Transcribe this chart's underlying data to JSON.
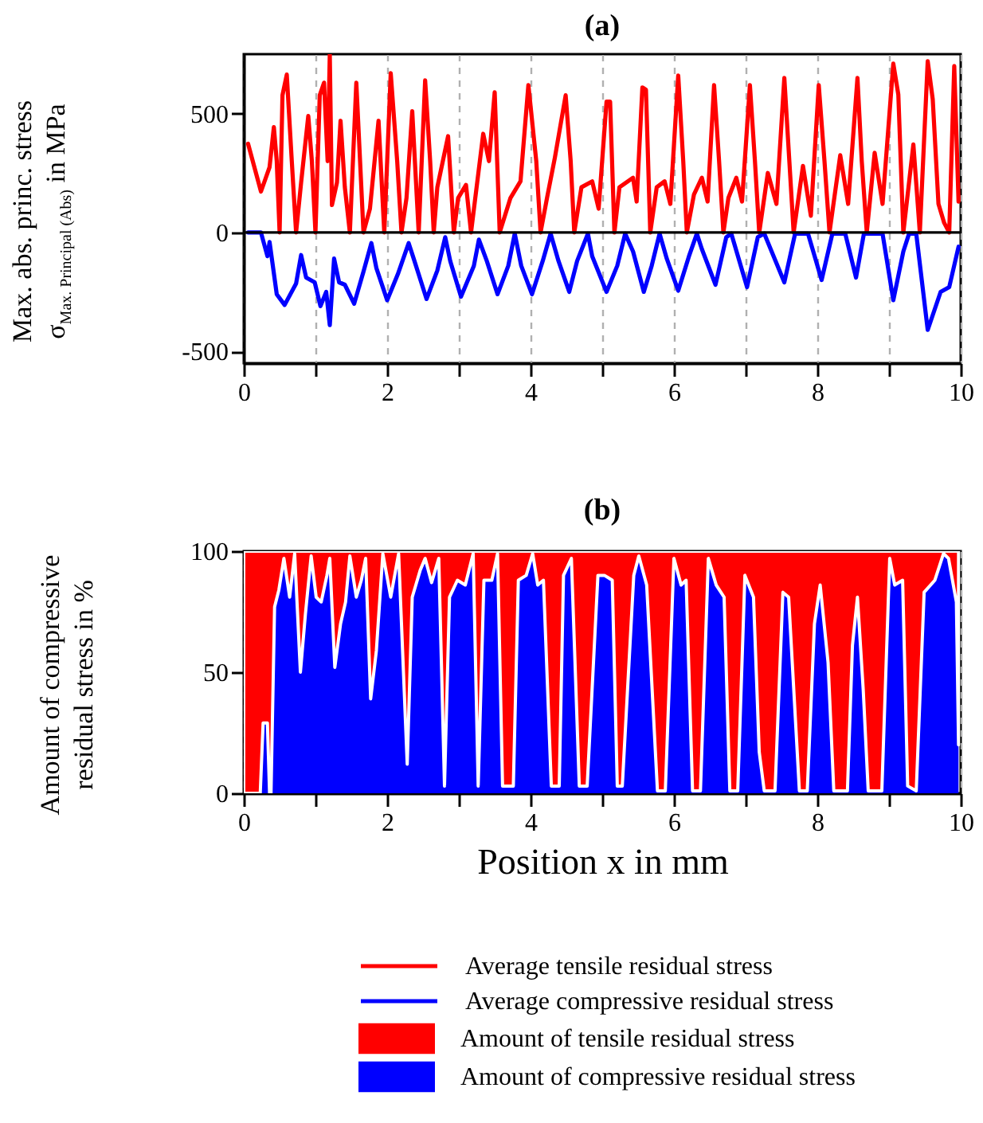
{
  "chart_data": [
    {
      "type": "line",
      "title": "(a)",
      "ylabel": "Max. abs. princ. stress\nσ$_{Max. Principal (Abs)}$ in MPa",
      "xlim": [
        0,
        10
      ],
      "xticks": [
        0,
        {
          "value": 1,
          "label": null
        },
        2,
        {
          "value": 3,
          "label": null
        },
        4,
        {
          "value": 5,
          "label": null
        },
        6,
        {
          "value": 7,
          "label": null
        },
        8,
        {
          "value": 9,
          "label": null
        },
        10
      ],
      "ylim": [
        -550,
        750
      ],
      "yticks": [
        -500,
        0,
        500
      ],
      "grid": "x",
      "legend": "bottom",
      "ref_lines": [
        {
          "axis": "y",
          "value": 0,
          "color": "#000000"
        }
      ],
      "series": [
        {
          "name": "Average tensile residual stress",
          "color": "#ff0000",
          "x": [
            0.06,
            0.24,
            0.36,
            0.42,
            0.46,
            0.5,
            0.54,
            0.6,
            0.67,
            0.73,
            0.8,
            0.9,
            0.95,
            1.0,
            1.06,
            1.12,
            1.17,
            1.2,
            1.23,
            1.3,
            1.35,
            1.41,
            1.48,
            1.57,
            1.67,
            1.76,
            1.88,
            1.96,
            2.05,
            2.14,
            2.2,
            2.27,
            2.35,
            2.44,
            2.53,
            2.6,
            2.65,
            2.7,
            2.85,
            2.93,
            2.99,
            3.1,
            3.17,
            3.34,
            3.42,
            3.5,
            3.57,
            3.72,
            3.86,
            3.97,
            4.08,
            4.14,
            4.23,
            4.34,
            4.49,
            4.56,
            4.61,
            4.71,
            4.86,
            4.95,
            5.06,
            5.11,
            5.17,
            5.24,
            5.43,
            5.48,
            5.56,
            5.61,
            5.67,
            5.76,
            5.87,
            5.95,
            6.06,
            6.13,
            6.18,
            6.28,
            6.39,
            6.47,
            6.56,
            6.63,
            6.69,
            6.76,
            6.87,
            6.95,
            7.06,
            7.13,
            7.19,
            7.31,
            7.43,
            7.54,
            7.61,
            7.67,
            7.8,
            7.91,
            8.02,
            8.1,
            8.17,
            8.32,
            8.43,
            8.56,
            8.62,
            8.69,
            8.8,
            8.91,
            9.06,
            9.13,
            9.2,
            9.34,
            9.43,
            9.54,
            9.61,
            9.69,
            9.77,
            9.84,
            9.91,
            9.97
          ],
          "values": [
            373,
            172,
            275,
            443,
            300,
            0,
            577,
            664,
            300,
            0,
            210,
            490,
            300,
            0,
            577,
            630,
            300,
            750,
            115,
            210,
            470,
            190,
            0,
            630,
            0,
            100,
            470,
            0,
            670,
            300,
            0,
            145,
            510,
            0,
            640,
            300,
            0,
            190,
            405,
            0,
            145,
            200,
            0,
            415,
            300,
            590,
            0,
            145,
            215,
            620,
            300,
            0,
            145,
            315,
            577,
            300,
            0,
            190,
            215,
            100,
            550,
            550,
            0,
            190,
            230,
            130,
            610,
            600,
            0,
            190,
            215,
            120,
            660,
            300,
            0,
            160,
            230,
            130,
            620,
            300,
            0,
            145,
            230,
            130,
            620,
            300,
            0,
            250,
            120,
            650,
            300,
            0,
            280,
            70,
            620,
            300,
            0,
            325,
            120,
            650,
            300,
            0,
            335,
            120,
            710,
            580,
            0,
            370,
            0,
            720,
            560,
            120,
            40,
            0,
            700,
            130
          ]
        },
        {
          "name": "Average compressive residual stress",
          "color": "#0000ff",
          "x": [
            0.06,
            0.24,
            0.33,
            0.36,
            0.46,
            0.57,
            0.73,
            0.8,
            0.87,
            0.99,
            1.07,
            1.15,
            1.2,
            1.26,
            1.33,
            1.41,
            1.54,
            1.67,
            1.78,
            1.85,
            2.0,
            2.15,
            2.3,
            2.37,
            2.55,
            2.7,
            2.81,
            2.88,
            3.03,
            3.21,
            3.28,
            3.39,
            3.54,
            3.69,
            3.78,
            3.87,
            4.02,
            4.17,
            4.28,
            4.39,
            4.54,
            4.65,
            4.8,
            4.86,
            5.06,
            5.21,
            5.32,
            5.43,
            5.58,
            5.69,
            5.8,
            5.9,
            6.06,
            6.21,
            6.32,
            6.39,
            6.58,
            6.73,
            6.8,
            7.02,
            7.17,
            7.26,
            7.54,
            7.69,
            7.87,
            8.06,
            8.21,
            8.39,
            8.54,
            8.65,
            8.91,
            9.06,
            9.2,
            9.28,
            9.38,
            9.54,
            9.72,
            9.84,
            9.97
          ],
          "values": [
            0,
            0,
            -100,
            -40,
            -260,
            -305,
            -215,
            -95,
            -190,
            -210,
            -310,
            -250,
            -390,
            -110,
            -210,
            -220,
            -300,
            -165,
            -45,
            -150,
            -285,
            -175,
            -45,
            -110,
            -280,
            -160,
            -20,
            -120,
            -270,
            -140,
            -30,
            -120,
            -260,
            -140,
            -5,
            -140,
            -260,
            -120,
            -5,
            -120,
            -250,
            -120,
            -5,
            -100,
            -250,
            -140,
            -5,
            -80,
            -250,
            -140,
            -5,
            -110,
            -245,
            -100,
            -5,
            -70,
            -220,
            -20,
            -5,
            -230,
            -20,
            -5,
            -210,
            -5,
            -5,
            -200,
            -5,
            -5,
            -190,
            -5,
            -5,
            -285,
            -80,
            -5,
            -5,
            -410,
            -250,
            -230,
            -60
          ]
        }
      ]
    },
    {
      "type": "area",
      "stacked": true,
      "title": "(b)",
      "xlabel": "Position x in mm",
      "ylabel": "Amount of compressive\nresidual stress in %",
      "x": [
        0,
        0.23,
        0.27,
        0.33,
        0.36,
        0.38,
        0.43,
        0.49,
        0.56,
        0.64,
        0.71,
        0.79,
        0.86,
        0.94,
        1.01,
        1.08,
        1.16,
        1.2,
        1.27,
        1.35,
        1.42,
        1.48,
        1.57,
        1.64,
        1.7,
        1.77,
        1.85,
        1.94,
        2.05,
        2.16,
        2.28,
        2.35,
        2.46,
        2.53,
        2.62,
        2.72,
        2.8,
        2.87,
        2.98,
        3.09,
        3.2,
        3.27,
        3.35,
        3.46,
        3.54,
        3.61,
        3.76,
        3.83,
        3.94,
        4.03,
        4.1,
        4.18,
        4.29,
        4.4,
        4.46,
        4.57,
        4.68,
        4.79,
        4.94,
        5.03,
        5.14,
        5.21,
        5.28,
        5.44,
        5.51,
        5.62,
        5.77,
        5.88,
        6.0,
        6.1,
        6.17,
        6.26,
        6.37,
        6.48,
        6.59,
        6.7,
        6.78,
        6.89,
        6.99,
        7.11,
        7.19,
        7.26,
        7.41,
        7.52,
        7.6,
        7.75,
        7.86,
        7.96,
        8.04,
        8.15,
        8.23,
        8.42,
        8.49,
        8.56,
        8.64,
        8.71,
        8.9,
        9.01,
        9.08,
        9.19,
        9.26,
        9.38,
        9.49,
        9.64,
        9.76,
        9.83,
        9.94,
        9.97
      ],
      "xlim": [
        0,
        10
      ],
      "xticks": [
        0,
        {
          "value": 1,
          "label": null
        },
        2,
        {
          "value": 3,
          "label": null
        },
        4,
        {
          "value": 5,
          "label": null
        },
        6,
        {
          "value": 7,
          "label": null
        },
        8,
        {
          "value": 9,
          "label": null
        },
        10
      ],
      "ylim": [
        0,
        100
      ],
      "yticks": [
        0,
        50,
        100
      ],
      "grid": "x",
      "legend": "bottom",
      "series": [
        {
          "name": "Amount of compressive residual stress",
          "color": "#0000ff",
          "values": [
            0,
            0,
            29,
            29,
            0,
            0,
            77,
            84,
            97,
            81,
            99,
            50,
            74,
            98,
            81,
            79,
            90,
            97,
            52,
            70,
            79,
            98,
            81,
            88,
            97,
            39,
            59,
            99,
            81,
            99,
            12,
            81,
            92,
            97,
            87,
            97,
            3,
            81,
            88,
            86,
            99,
            3,
            88,
            88,
            99,
            3,
            3,
            88,
            90,
            99,
            86,
            88,
            3,
            3,
            90,
            97,
            3,
            3,
            90,
            90,
            88,
            3,
            3,
            90,
            98,
            86,
            1,
            1,
            97,
            86,
            88,
            1,
            1,
            97,
            86,
            81,
            1,
            1,
            90,
            81,
            17,
            1,
            1,
            83,
            81,
            1,
            1,
            70,
            86,
            54,
            1,
            1,
            61,
            81,
            43,
            1,
            1,
            97,
            86,
            88,
            3,
            1,
            83,
            88,
            99,
            97,
            79,
            20
          ]
        },
        {
          "name": "Amount of tensile residual stress",
          "color": "#ff0000",
          "values": [
            100,
            100,
            71,
            71,
            100,
            100,
            23,
            16,
            3,
            19,
            1,
            50,
            26,
            2,
            19,
            21,
            10,
            3,
            48,
            30,
            21,
            2,
            19,
            12,
            3,
            61,
            41,
            1,
            19,
            1,
            88,
            19,
            8,
            3,
            13,
            3,
            97,
            19,
            12,
            14,
            1,
            97,
            12,
            12,
            1,
            97,
            97,
            12,
            10,
            1,
            14,
            12,
            97,
            97,
            10,
            3,
            97,
            97,
            10,
            10,
            12,
            97,
            97,
            10,
            2,
            14,
            99,
            99,
            3,
            14,
            12,
            99,
            99,
            3,
            14,
            19,
            99,
            99,
            10,
            19,
            83,
            99,
            99,
            17,
            19,
            99,
            99,
            30,
            14,
            46,
            99,
            99,
            39,
            19,
            57,
            99,
            99,
            3,
            14,
            12,
            97,
            99,
            17,
            12,
            1,
            3,
            21,
            80
          ]
        }
      ]
    }
  ]
}
